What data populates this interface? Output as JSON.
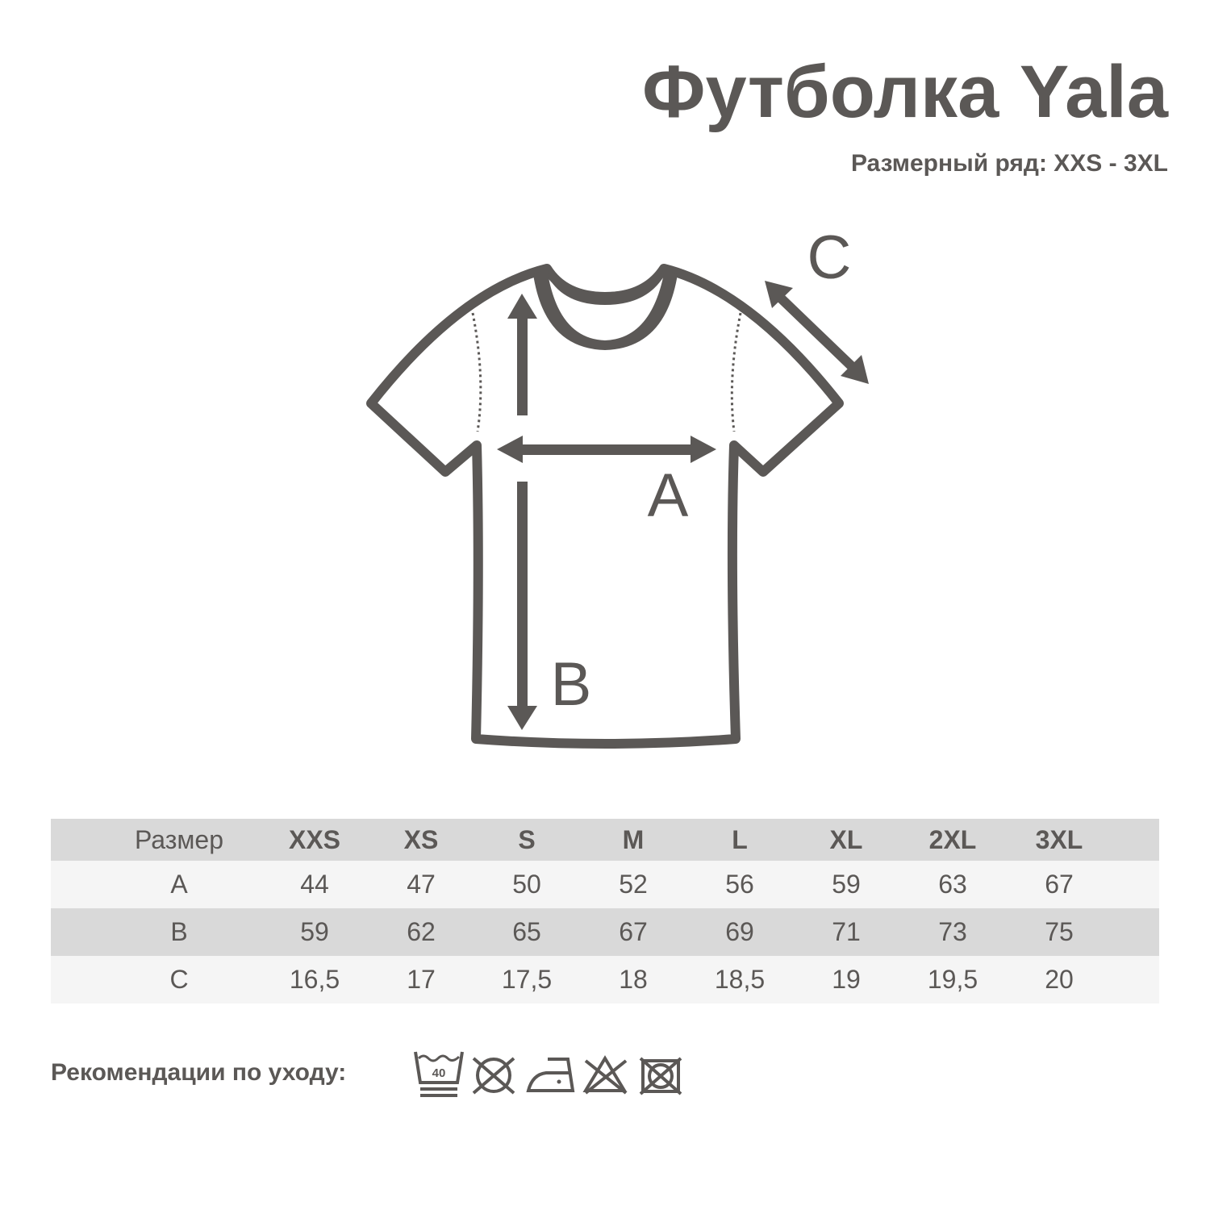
{
  "title": "Футболка Yala",
  "subtitle": "Размерный ряд: XXS - 3XL",
  "diagram": {
    "labels": {
      "a": "A",
      "b": "B",
      "c": "C"
    },
    "color": "#5b5856"
  },
  "table": {
    "header": [
      "Размер",
      "XXS",
      "XS",
      "S",
      "M",
      "L",
      "XL",
      "2XL",
      "3XL"
    ],
    "rows": [
      [
        "A",
        "44",
        "47",
        "50",
        "52",
        "56",
        "59",
        "63",
        "67"
      ],
      [
        "B",
        "59",
        "62",
        "65",
        "67",
        "69",
        "71",
        "73",
        "75"
      ],
      [
        "C",
        "16,5",
        "17",
        "17,5",
        "18",
        "18,5",
        "19",
        "19,5",
        "20"
      ]
    ],
    "colors": {
      "header_bg": "#d9d9d9",
      "light_row": "#f5f5f5",
      "dark_row": "#d9d9d9",
      "text": "#5b5856"
    }
  },
  "care": {
    "label": "Рекомендации по уходу:",
    "wash_temp": "40",
    "icons": [
      "wash-40-icon",
      "no-tumble-dry-icon",
      "iron-low-icon",
      "no-bleach-icon",
      "no-dry-clean-icon"
    ]
  }
}
